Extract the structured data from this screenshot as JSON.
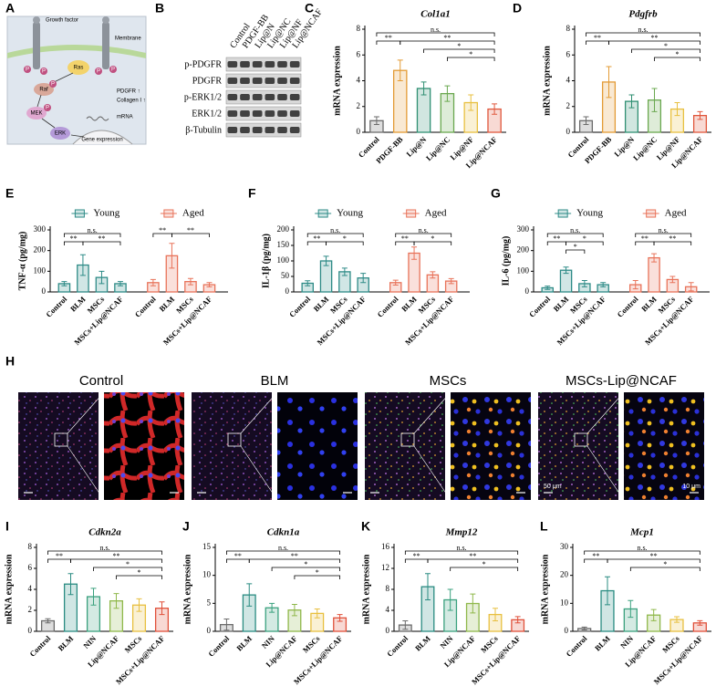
{
  "diagram": {
    "panel": "A",
    "texts": {
      "growth_factor": "Growth factor",
      "membrane": "Membrane",
      "ras": "Ras",
      "raf": "Raf",
      "mek": "MEK",
      "erk": "ERK",
      "pdgfr": "PDGFR ↑",
      "collagen": "Collagen I ↑",
      "mrna": "mRNA",
      "gene_expression": "Gene expression",
      "phospho": "P"
    }
  },
  "blot": {
    "panel": "B",
    "lanes": [
      "Control",
      "PDGF-BB",
      "Lip@N",
      "Lip@NC",
      "Lip@NF",
      "Lip@NCAF"
    ],
    "proteins": [
      "p-PDGFR",
      "PDGFR",
      "p-ERK1/2",
      "ERK1/2",
      "β-Tubulin"
    ]
  },
  "chart_data": [
    {
      "type": "bar",
      "panel": "C",
      "title": "Col1a1",
      "y_label": "mRNA expression",
      "categories": [
        "Control",
        "PDGF-BB",
        "Lip@N",
        "Lip@NC",
        "Lip@NF",
        "Lip@NCAF"
      ],
      "values": [
        0.9,
        4.8,
        3.4,
        3.0,
        2.3,
        1.8
      ],
      "errors": [
        0.3,
        0.8,
        0.5,
        0.6,
        0.6,
        0.4
      ],
      "colors": [
        "#6b6b6b",
        "#e39b35",
        "#2f8f72",
        "#6aa84f",
        "#e8c040",
        "#e0573c"
      ],
      "ylim": [
        0,
        8
      ],
      "yticks": [
        0,
        2,
        4,
        6,
        8
      ],
      "brackets": [
        {
          "label": "n.s.",
          "from": "Control",
          "to": "Lip@NCAF"
        },
        {
          "label": "**",
          "from": "Control",
          "to": "PDGF-BB"
        },
        {
          "label": "**",
          "from": "PDGF-BB",
          "to": "Lip@NCAF"
        },
        {
          "label": "*",
          "from": "Lip@N",
          "to": "Lip@NCAF"
        },
        {
          "label": "*",
          "from": "Lip@NC",
          "to": "Lip@NCAF"
        }
      ]
    },
    {
      "type": "bar",
      "panel": "D",
      "title": "Pdgfrb",
      "y_label": "mRNA expression",
      "categories": [
        "Control",
        "PDGF-BB",
        "Lip@N",
        "Lip@NC",
        "Lip@NF",
        "Lip@NCAF"
      ],
      "values": [
        0.9,
        3.9,
        2.4,
        2.5,
        1.8,
        1.3
      ],
      "errors": [
        0.3,
        1.2,
        0.5,
        0.9,
        0.5,
        0.3
      ],
      "colors": [
        "#6b6b6b",
        "#e39b35",
        "#2f8f72",
        "#6aa84f",
        "#e8c040",
        "#e0573c"
      ],
      "ylim": [
        0,
        8
      ],
      "yticks": [
        0,
        2,
        4,
        6,
        8
      ],
      "brackets": [
        {
          "label": "n.s.",
          "from": "Control",
          "to": "Lip@NCAF"
        },
        {
          "label": "**",
          "from": "Control",
          "to": "PDGF-BB"
        },
        {
          "label": "**",
          "from": "PDGF-BB",
          "to": "Lip@NCAF"
        },
        {
          "label": "*",
          "from": "Lip@N",
          "to": "Lip@NCAF"
        },
        {
          "label": "*",
          "from": "Lip@NC",
          "to": "Lip@NCAF"
        }
      ]
    },
    {
      "type": "grouped_bar",
      "panel": "E",
      "y_label": "TNF-α (pg/mg)",
      "legend": "top",
      "categories": [
        "Control",
        "BLM",
        "MSCs",
        "MSCs+Lip@NCAF"
      ],
      "series": [
        {
          "name": "Young",
          "color": "#2e8b87",
          "values": [
            40,
            130,
            70,
            40
          ],
          "errors": [
            10,
            50,
            30,
            10
          ],
          "brackets": [
            {
              "label": "n.s.",
              "from": "Control",
              "to": "MSCs+Lip@NCAF"
            },
            {
              "label": "**",
              "from": "Control",
              "to": "BLM"
            },
            {
              "label": "**",
              "from": "BLM",
              "to": "MSCs+Lip@NCAF"
            }
          ]
        },
        {
          "name": "Aged",
          "color": "#e8735a",
          "values": [
            45,
            175,
            50,
            35
          ],
          "errors": [
            15,
            60,
            15,
            10
          ],
          "brackets": [
            {
              "label": "**",
              "from": "Control",
              "to": "BLM"
            },
            {
              "label": "**",
              "from": "BLM",
              "to": "MSCs+Lip@NCAF"
            }
          ]
        }
      ],
      "ylim": [
        0,
        300
      ],
      "yticks": [
        0,
        100,
        200,
        300
      ]
    },
    {
      "type": "grouped_bar",
      "panel": "F",
      "y_label": "IL-1β (pg/mg)",
      "legend": "top",
      "categories": [
        "Control",
        "BLM",
        "MSCs",
        "MSCs+Lip@NCAF"
      ],
      "series": [
        {
          "name": "Young",
          "color": "#2e8b87",
          "values": [
            28,
            100,
            65,
            45
          ],
          "errors": [
            8,
            15,
            12,
            15
          ],
          "brackets": [
            {
              "label": "n.s.",
              "from": "Control",
              "to": "MSCs+Lip@NCAF"
            },
            {
              "label": "**",
              "from": "Control",
              "to": "BLM"
            },
            {
              "label": "*",
              "from": "BLM",
              "to": "MSCs+Lip@NCAF"
            }
          ]
        },
        {
          "name": "Aged",
          "color": "#e8735a",
          "values": [
            30,
            125,
            55,
            35
          ],
          "errors": [
            8,
            20,
            10,
            8
          ],
          "brackets": [
            {
              "label": "n.s.",
              "from": "Control",
              "to": "MSCs+Lip@NCAF"
            },
            {
              "label": "**",
              "from": "Control",
              "to": "BLM"
            },
            {
              "label": "*",
              "from": "BLM",
              "to": "MSCs+Lip@NCAF"
            }
          ]
        }
      ],
      "ylim": [
        0,
        200
      ],
      "yticks": [
        0,
        50,
        100,
        150,
        200
      ]
    },
    {
      "type": "grouped_bar",
      "panel": "G",
      "y_label": "IL-6 (pg/mg)",
      "legend": "top",
      "categories": [
        "Control",
        "BLM",
        "MSCs",
        "MSCs+Lip@NCAF"
      ],
      "series": [
        {
          "name": "Young",
          "color": "#2e8b87",
          "values": [
            20,
            105,
            40,
            35
          ],
          "errors": [
            8,
            15,
            15,
            10
          ],
          "brackets": [
            {
              "label": "n.s.",
              "from": "Control",
              "to": "MSCs+Lip@NCAF"
            },
            {
              "label": "**",
              "from": "Control",
              "to": "BLM"
            },
            {
              "label": "*",
              "from": "BLM",
              "to": "MSCs+Lip@NCAF"
            },
            {
              "label": "*",
              "from": "BLM",
              "to": "MSCs"
            }
          ]
        },
        {
          "name": "Aged",
          "color": "#e8735a",
          "values": [
            35,
            165,
            60,
            25
          ],
          "errors": [
            20,
            20,
            15,
            20
          ],
          "brackets": [
            {
              "label": "n.s.",
              "from": "Control",
              "to": "MSCs+Lip@NCAF"
            },
            {
              "label": "**",
              "from": "Control",
              "to": "BLM"
            },
            {
              "label": "**",
              "from": "BLM",
              "to": "MSCs+Lip@NCAF"
            }
          ]
        }
      ],
      "ylim": [
        0,
        300
      ],
      "yticks": [
        0,
        100,
        200,
        300
      ]
    },
    {
      "type": "bar",
      "panel": "I",
      "title": "Cdkn2a",
      "y_label": "mRNA expression",
      "categories": [
        "Control",
        "BLM",
        "NIN",
        "Lip@NCAF",
        "MSCs",
        "MSCs+Lip@NCAF"
      ],
      "values": [
        1.0,
        4.5,
        3.3,
        2.9,
        2.5,
        2.2
      ],
      "errors": [
        0.2,
        1.0,
        0.8,
        0.7,
        0.6,
        0.6
      ],
      "colors": [
        "#6b6b6b",
        "#2a8c82",
        "#3aa17e",
        "#8fb84a",
        "#e8c040",
        "#e0503a"
      ],
      "ylim": [
        0,
        8
      ],
      "yticks": [
        0,
        2,
        4,
        6,
        8
      ],
      "brackets": [
        {
          "label": "n.s.",
          "from": "Control",
          "to": "MSCs+Lip@NCAF"
        },
        {
          "label": "**",
          "from": "Control",
          "to": "BLM"
        },
        {
          "label": "**",
          "from": "BLM",
          "to": "MSCs+Lip@NCAF"
        },
        {
          "label": "*",
          "from": "NIN",
          "to": "MSCs+Lip@NCAF"
        },
        {
          "label": "*",
          "from": "Lip@NCAF",
          "to": "MSCs+Lip@NCAF"
        }
      ]
    },
    {
      "type": "bar",
      "panel": "J",
      "title": "Cdkn1a",
      "y_label": "mRNA expression",
      "categories": [
        "Control",
        "BLM",
        "NIN",
        "Lip@NCAF",
        "MSCs",
        "MSCs+Lip@NCAF"
      ],
      "values": [
        1.2,
        6.5,
        4.2,
        3.8,
        3.2,
        2.4
      ],
      "errors": [
        1.0,
        2.0,
        0.8,
        1.0,
        0.8,
        0.6
      ],
      "colors": [
        "#6b6b6b",
        "#2a8c82",
        "#3aa17e",
        "#8fb84a",
        "#e8c040",
        "#e0503a"
      ],
      "ylim": [
        0,
        15
      ],
      "yticks": [
        0,
        5,
        10,
        15
      ],
      "brackets": [
        {
          "label": "n.s.",
          "from": "Control",
          "to": "MSCs+Lip@NCAF"
        },
        {
          "label": "**",
          "from": "Control",
          "to": "BLM"
        },
        {
          "label": "**",
          "from": "BLM",
          "to": "MSCs+Lip@NCAF"
        },
        {
          "label": "*",
          "from": "NIN",
          "to": "MSCs+Lip@NCAF"
        },
        {
          "label": "*",
          "from": "Lip@NCAF",
          "to": "MSCs+Lip@NCAF"
        }
      ]
    },
    {
      "type": "bar",
      "panel": "K",
      "title": "Mmp12",
      "y_label": "mRNA expression",
      "categories": [
        "Control",
        "BLM",
        "NIN",
        "Lip@NCAF",
        "MSCs",
        "MSCs+Lip@NCAF"
      ],
      "values": [
        1.2,
        8.5,
        6.0,
        5.3,
        3.2,
        2.2
      ],
      "errors": [
        0.8,
        2.5,
        2.0,
        1.8,
        1.2,
        0.6
      ],
      "colors": [
        "#6b6b6b",
        "#2a8c82",
        "#3aa17e",
        "#8fb84a",
        "#e8c040",
        "#e0503a"
      ],
      "ylim": [
        0,
        16
      ],
      "yticks": [
        0,
        4,
        8,
        12,
        16
      ],
      "brackets": [
        {
          "label": "n.s.",
          "from": "Control",
          "to": "MSCs+Lip@NCAF"
        },
        {
          "label": "**",
          "from": "Control",
          "to": "BLM"
        },
        {
          "label": "**",
          "from": "BLM",
          "to": "MSCs+Lip@NCAF"
        },
        {
          "label": "*",
          "from": "NIN",
          "to": "MSCs+Lip@NCAF"
        }
      ]
    },
    {
      "type": "bar",
      "panel": "L",
      "title": "Mcp1",
      "y_label": "mRNA expression",
      "categories": [
        "Control",
        "BLM",
        "NIN",
        "Lip@NCAF",
        "MSCs",
        "MSCs+Lip@NCAF"
      ],
      "values": [
        1.0,
        14.5,
        8.0,
        5.8,
        4.2,
        3.0
      ],
      "errors": [
        0.5,
        5.0,
        3.0,
        2.0,
        1.0,
        0.8
      ],
      "colors": [
        "#6b6b6b",
        "#2a8c82",
        "#3aa17e",
        "#8fb84a",
        "#e8c040",
        "#e0503a"
      ],
      "ylim": [
        0,
        30
      ],
      "yticks": [
        0,
        10,
        20,
        30
      ],
      "brackets": [
        {
          "label": "n.s.",
          "from": "Control",
          "to": "MSCs+Lip@NCAF"
        },
        {
          "label": "**",
          "from": "Control",
          "to": "BLM"
        },
        {
          "label": "**",
          "from": "BLM",
          "to": "MSCs+Lip@NCAF"
        },
        {
          "label": "*",
          "from": "NIN",
          "to": "MSCs+Lip@NCAF"
        }
      ]
    }
  ],
  "images": {
    "panel": "H",
    "groups": [
      "Control",
      "BLM",
      "MSCs",
      "MSCs-Lip@NCAF"
    ],
    "scale_bars": [
      "50 μm",
      "10 μm"
    ]
  }
}
